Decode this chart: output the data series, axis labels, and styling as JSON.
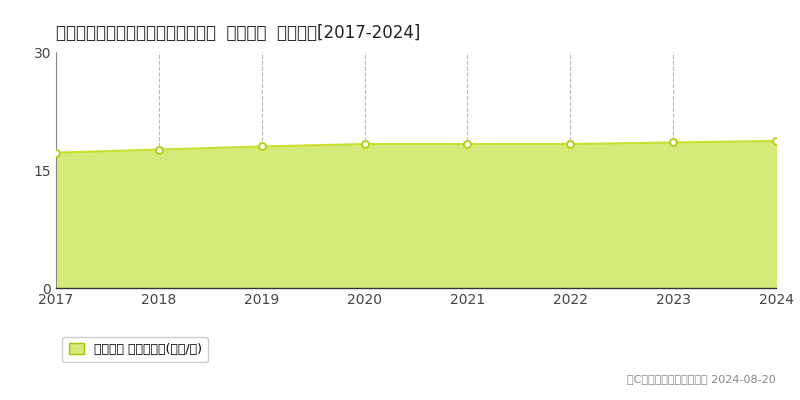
{
  "title": "青森県青森市東大野２丁目７番２外  地価公示  地価推移[2017-2024]",
  "years": [
    2017,
    2018,
    2019,
    2020,
    2021,
    2022,
    2023,
    2024
  ],
  "values": [
    17.2,
    17.6,
    18.0,
    18.3,
    18.3,
    18.3,
    18.5,
    18.7
  ],
  "line_color": "#c8e030",
  "fill_color": "#d4eb7a",
  "marker_edge_color": "#b8d020",
  "marker_face": "#ffffff",
  "ylim": [
    0,
    30
  ],
  "yticks": [
    0,
    15,
    30
  ],
  "background_color": "#ffffff",
  "grid_color": "#aaaaaa",
  "legend_label": "地価公示 平均坊単価(万円/坊)",
  "copyright_text": "（C）土地価格ドットコム 2024-08-20",
  "title_fontsize": 12,
  "axis_fontsize": 10,
  "legend_fontsize": 9
}
